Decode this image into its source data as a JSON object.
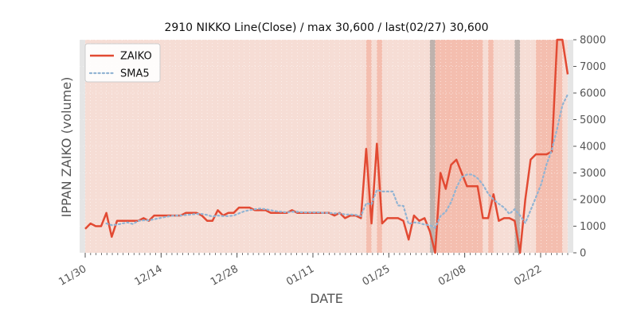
{
  "chart_data": {
    "type": "line",
    "title": "2910 NIKKO Line(Close) / max 30,600 / last(02/27) 30,600",
    "xlabel": "DATE",
    "ylabel": "IPPAN ZAIKO (volume)",
    "ylim": [
      0,
      8000
    ],
    "y_ticks": [
      0,
      1000,
      2000,
      3000,
      4000,
      5000,
      6000,
      7000,
      8000
    ],
    "y_axis_side": "right",
    "x_range": [
      "2020-11-30",
      "2021-02-27"
    ],
    "x_ticks": [
      {
        "date": "2020-11-30",
        "label": "11/30"
      },
      {
        "date": "2020-12-14",
        "label": "12/14"
      },
      {
        "date": "2020-12-28",
        "label": "12/28"
      },
      {
        "date": "2021-01-11",
        "label": "01/11"
      },
      {
        "date": "2021-01-25",
        "label": "01/25"
      },
      {
        "date": "2021-02-08",
        "label": "02/08"
      },
      {
        "date": "2021-02-22",
        "label": "02/22"
      }
    ],
    "legend": {
      "placement": "top-left"
    },
    "grid": true,
    "series": [
      {
        "name": "ZAIKO",
        "color": "#e24a33",
        "style": "solid",
        "values": [
          900,
          1100,
          1000,
          1000,
          1500,
          600,
          1200,
          1200,
          1200,
          1200,
          1200,
          1300,
          1200,
          1400,
          1400,
          1400,
          1400,
          1400,
          1400,
          1500,
          1500,
          1500,
          1400,
          1200,
          1200,
          1600,
          1400,
          1500,
          1500,
          1700,
          1700,
          1700,
          1600,
          1600,
          1600,
          1500,
          1500,
          1500,
          1500,
          1600,
          1500,
          1500,
          1500,
          1500,
          1500,
          1500,
          1500,
          1400,
          1500,
          1300,
          1400,
          1400,
          1300,
          3900,
          1100,
          4100,
          1100,
          1300,
          1300,
          1300,
          1200,
          500,
          1400,
          1200,
          1300,
          800,
          0,
          3000,
          2400,
          3300,
          3500,
          3000,
          2500,
          2500,
          2500,
          1300,
          1300,
          2200,
          1200,
          1300,
          1300,
          1200,
          0,
          2000,
          3500,
          3700,
          3700,
          3700,
          3800,
          8000,
          8000,
          6700
        ]
      },
      {
        "name": "SMA5",
        "color": "#92b4d3",
        "style": "dotted",
        "values": [
          null,
          null,
          null,
          null,
          1100,
          1040,
          1060,
          1100,
          1140,
          1080,
          1200,
          1220,
          1220,
          1260,
          1300,
          1340,
          1380,
          1400,
          1400,
          1420,
          1440,
          1460,
          1460,
          1420,
          1360,
          1400,
          1380,
          1380,
          1400,
          1480,
          1560,
          1600,
          1640,
          1660,
          1640,
          1600,
          1560,
          1540,
          1520,
          1540,
          1540,
          1520,
          1520,
          1520,
          1520,
          1500,
          1500,
          1480,
          1480,
          1440,
          1440,
          1420,
          1380,
          1860,
          1820,
          2360,
          2300,
          2300,
          2300,
          1780,
          1760,
          1080,
          1140,
          1120,
          1060,
          1040,
          940,
          1380,
          1540,
          1900,
          2440,
          2840,
          2940,
          2940,
          2800,
          2560,
          2220,
          2000,
          1840,
          1700,
          1460,
          1640,
          1400,
          1120,
          1600,
          2080,
          2580,
          3320,
          3860,
          4660,
          5540,
          5950
        ]
      }
    ],
    "shaded_bands": [
      {
        "start_index": 53,
        "end_index": 54,
        "color": "#f3b8a8"
      },
      {
        "start_index": 55,
        "end_index": 56,
        "color": "#f3b8a8"
      },
      {
        "start_index": 65,
        "end_index": 66,
        "color": "#b4aaa6"
      },
      {
        "start_index": 66,
        "end_index": 75,
        "color": "#f3b8a8"
      },
      {
        "start_index": 76,
        "end_index": 77,
        "color": "#f3b8a8"
      },
      {
        "start_index": 81,
        "end_index": 82,
        "color": "#b4aaa6"
      },
      {
        "start_index": 85,
        "end_index": 90,
        "color": "#f3b8a8"
      }
    ],
    "colors": {
      "plot_background": "#f6ddd5",
      "band_light": "#f3b8a8",
      "band_dark": "#b4aaa6",
      "grid": "#ffffff"
    }
  }
}
